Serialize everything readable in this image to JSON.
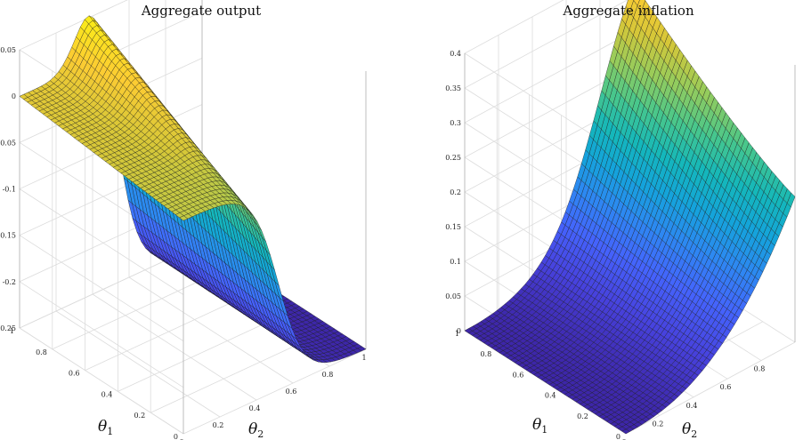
{
  "chart_data": [
    {
      "type": "surface",
      "title": "Aggregate output",
      "xlabel": "θ",
      "xlabel_sub": "2",
      "ylabel": "θ",
      "ylabel_sub": "1",
      "zlim": [
        -0.25,
        0.05
      ],
      "z_ticks": [
        "0.05",
        "0",
        "-0.05",
        "-0.1",
        "-0.15",
        "-0.2",
        "-0.25"
      ],
      "x_ticks": [
        "0",
        "0.2",
        "0.4",
        "0.6",
        "0.8",
        "1"
      ],
      "y_ticks": [
        "0",
        "0.2",
        "0.4",
        "0.6",
        "0.8",
        "1"
      ],
      "grid": true,
      "colormap": "parula",
      "corner_values": {
        "theta1_0_theta2_0": 0.0,
        "theta1_1_theta2_0": 0.0,
        "theta1_0_theta2_1": -0.25,
        "peak_theta1_1_theta2_05": 0.05,
        "ridge_theta1_0_theta2_05": -0.09
      }
    },
    {
      "type": "surface",
      "title": "Aggregate inflation",
      "xlabel": "θ",
      "xlabel_sub": "2",
      "ylabel": "θ",
      "ylabel_sub": "1",
      "zlim": [
        0,
        0.4
      ],
      "z_ticks": [
        "0.4",
        "0.35",
        "0.3",
        "0.25",
        "0.2",
        "0.15",
        "0.1",
        "0.05",
        "0"
      ],
      "x_ticks": [
        "0",
        "0.2",
        "0.4",
        "0.6",
        "0.8"
      ],
      "y_ticks": [
        "0",
        "0.2",
        "0.4",
        "0.6",
        "0.8",
        "1"
      ],
      "grid": true,
      "colormap": "parula",
      "corner_values": {
        "theta1_0_theta2_0": 0.0,
        "theta1_1_theta2_0": 0.0,
        "theta1_0_theta2_1": 0.21,
        "peak_theta1_1_theta2_1": 0.4
      }
    }
  ]
}
